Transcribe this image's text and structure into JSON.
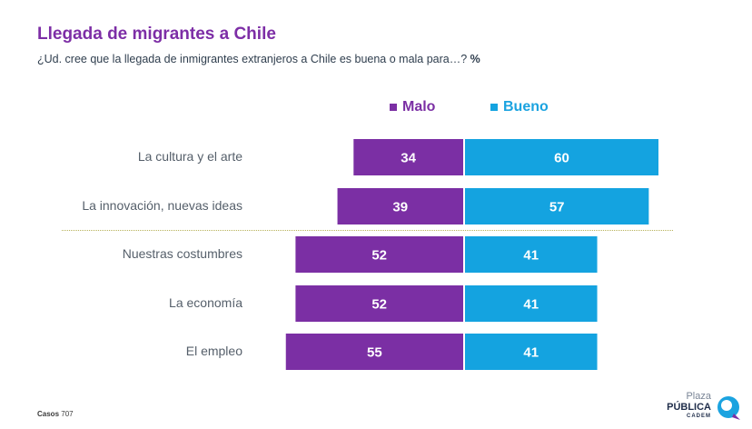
{
  "header": {
    "title": "Llegada de migrantes a Chile",
    "subtitle": "¿Ud. cree que la llegada de inmigrantes extranjeros a Chile es buena o mala para…?",
    "subtitle_unit": "%"
  },
  "legend": {
    "malo": "Malo",
    "bueno": "Bueno"
  },
  "colors": {
    "malo": "#7b2fa4",
    "bueno": "#14a3e0",
    "title": "#7d2ea6"
  },
  "chart_data": {
    "type": "bar",
    "orientation": "horizontal-diverging",
    "categories": [
      "La cultura y el arte",
      "La innovación, nuevas ideas",
      "Nuestras costumbres",
      "La economía",
      "El empleo"
    ],
    "series": [
      {
        "name": "Malo",
        "values": [
          34,
          39,
          52,
          52,
          55
        ]
      },
      {
        "name": "Bueno",
        "values": [
          60,
          57,
          41,
          41,
          41
        ]
      }
    ],
    "title": "Llegada de migrantes a Chile",
    "unit": "%",
    "grid": false,
    "legend_position": "top"
  },
  "footer": {
    "casos_label": "Casos",
    "casos_value": "707"
  },
  "logo": {
    "line1": "Plaza",
    "line2": "PÚBLICA",
    "line3": "CADEM"
  }
}
